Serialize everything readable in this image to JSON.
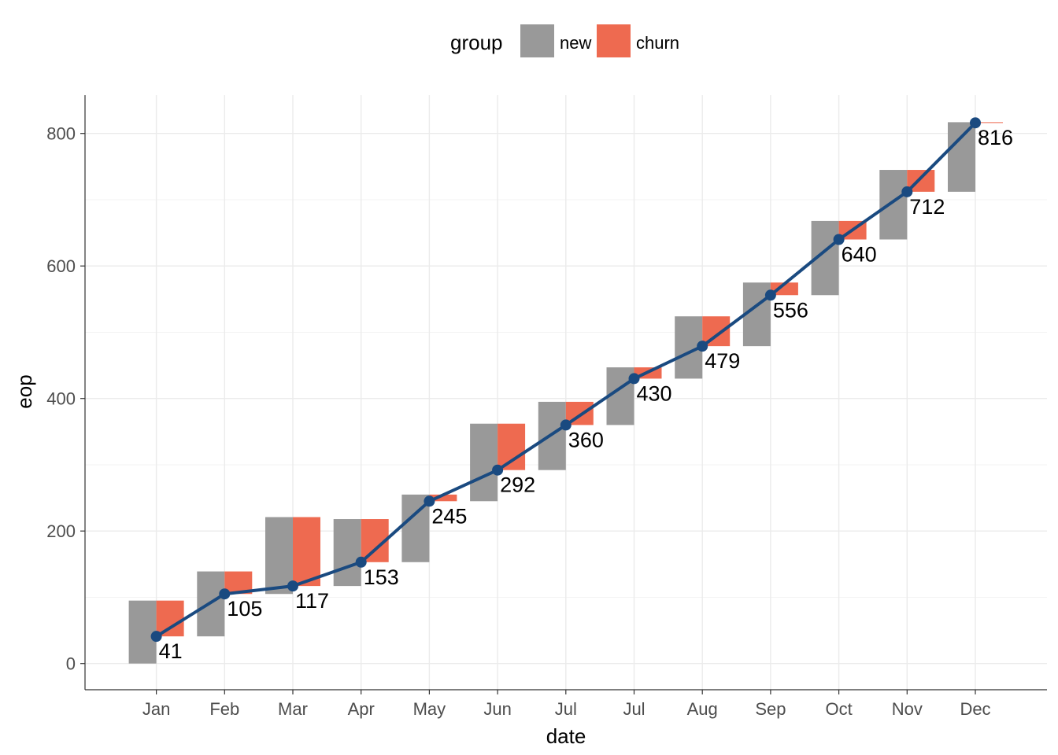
{
  "chart_data": {
    "type": "waterfall-bar-line",
    "legend": {
      "title": "group",
      "position": "top",
      "entries": [
        {
          "key": "new",
          "label": "new",
          "color": "#999999"
        },
        {
          "key": "churn",
          "label": "churn",
          "color": "#EE6A50"
        }
      ]
    },
    "xlabel": "date",
    "ylabel": "eop",
    "ylim": [
      -40,
      860
    ],
    "yticks": [
      0,
      200,
      400,
      600,
      800
    ],
    "grid": true,
    "line_color": "#1A4A80",
    "categories": [
      "Jan",
      "Feb",
      "Mar",
      "Apr",
      "May",
      "Jun",
      "Jul",
      "Jul",
      "Aug",
      "Sep",
      "Oct",
      "Nov",
      "Dec"
    ],
    "bop": [
      0,
      41,
      105,
      117,
      153,
      245,
      292,
      360,
      430,
      479,
      556,
      640,
      712
    ],
    "new": [
      95,
      98,
      116,
      101,
      102,
      117,
      103,
      87,
      94,
      96,
      112,
      105,
      105
    ],
    "churn": [
      54,
      34,
      104,
      65,
      10,
      70,
      35,
      17,
      45,
      19,
      28,
      33,
      1
    ],
    "eop": [
      41,
      105,
      117,
      153,
      245,
      292,
      360,
      430,
      479,
      556,
      640,
      712,
      816
    ],
    "eop_labels": [
      "41",
      "105",
      "117",
      "153",
      "245",
      "292",
      "360",
      "430",
      "479",
      "556",
      "640",
      "712",
      "816"
    ]
  }
}
